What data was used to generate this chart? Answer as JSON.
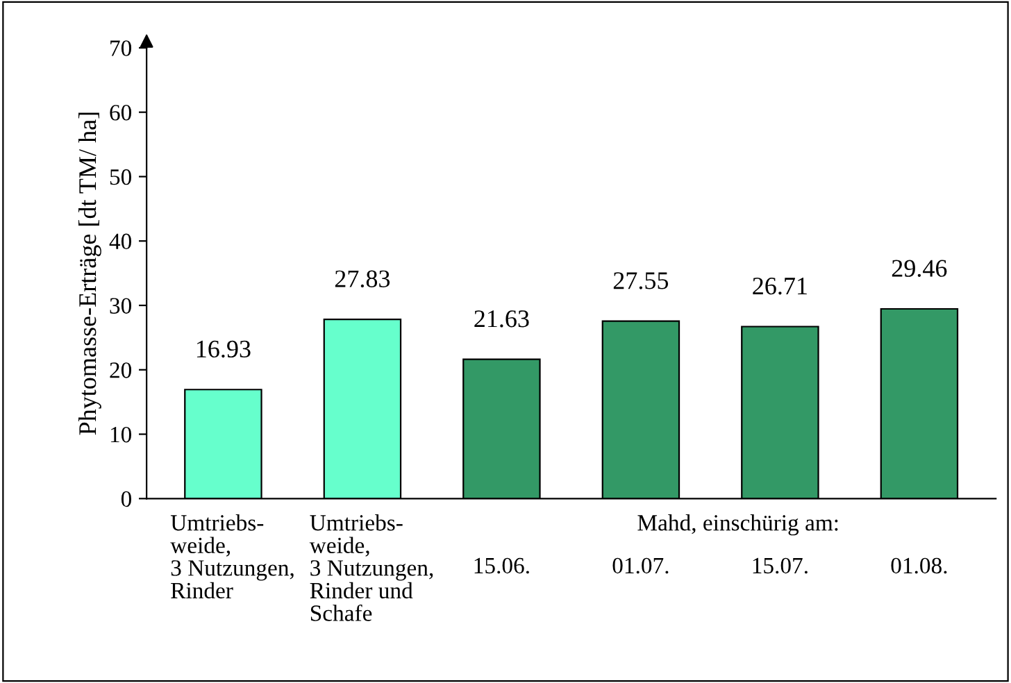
{
  "chart_data": {
    "type": "bar",
    "ylabel": "Phytomasse-Erträge [dt TM/ ha]",
    "categories": [
      "Umtriebs-\nweide,\n3 Nutzungen,\nRinder",
      "Umtriebs-\nweide,\n3 Nutzungen,\nRinder und\nSchafe",
      "15.06.",
      "01.07.",
      "15.07.",
      "01.08."
    ],
    "values": [
      16.93,
      27.83,
      21.63,
      27.55,
      26.71,
      29.46
    ],
    "colors": [
      "#66ffcc",
      "#66ffcc",
      "#339966",
      "#339966",
      "#339966",
      "#339966"
    ],
    "ylim": [
      0,
      70
    ],
    "yticks": [
      0,
      10,
      20,
      30,
      40,
      50,
      60,
      70
    ],
    "data_labels": true,
    "grid": false,
    "annotations": [
      "Mahd, einschürig am:"
    ]
  }
}
